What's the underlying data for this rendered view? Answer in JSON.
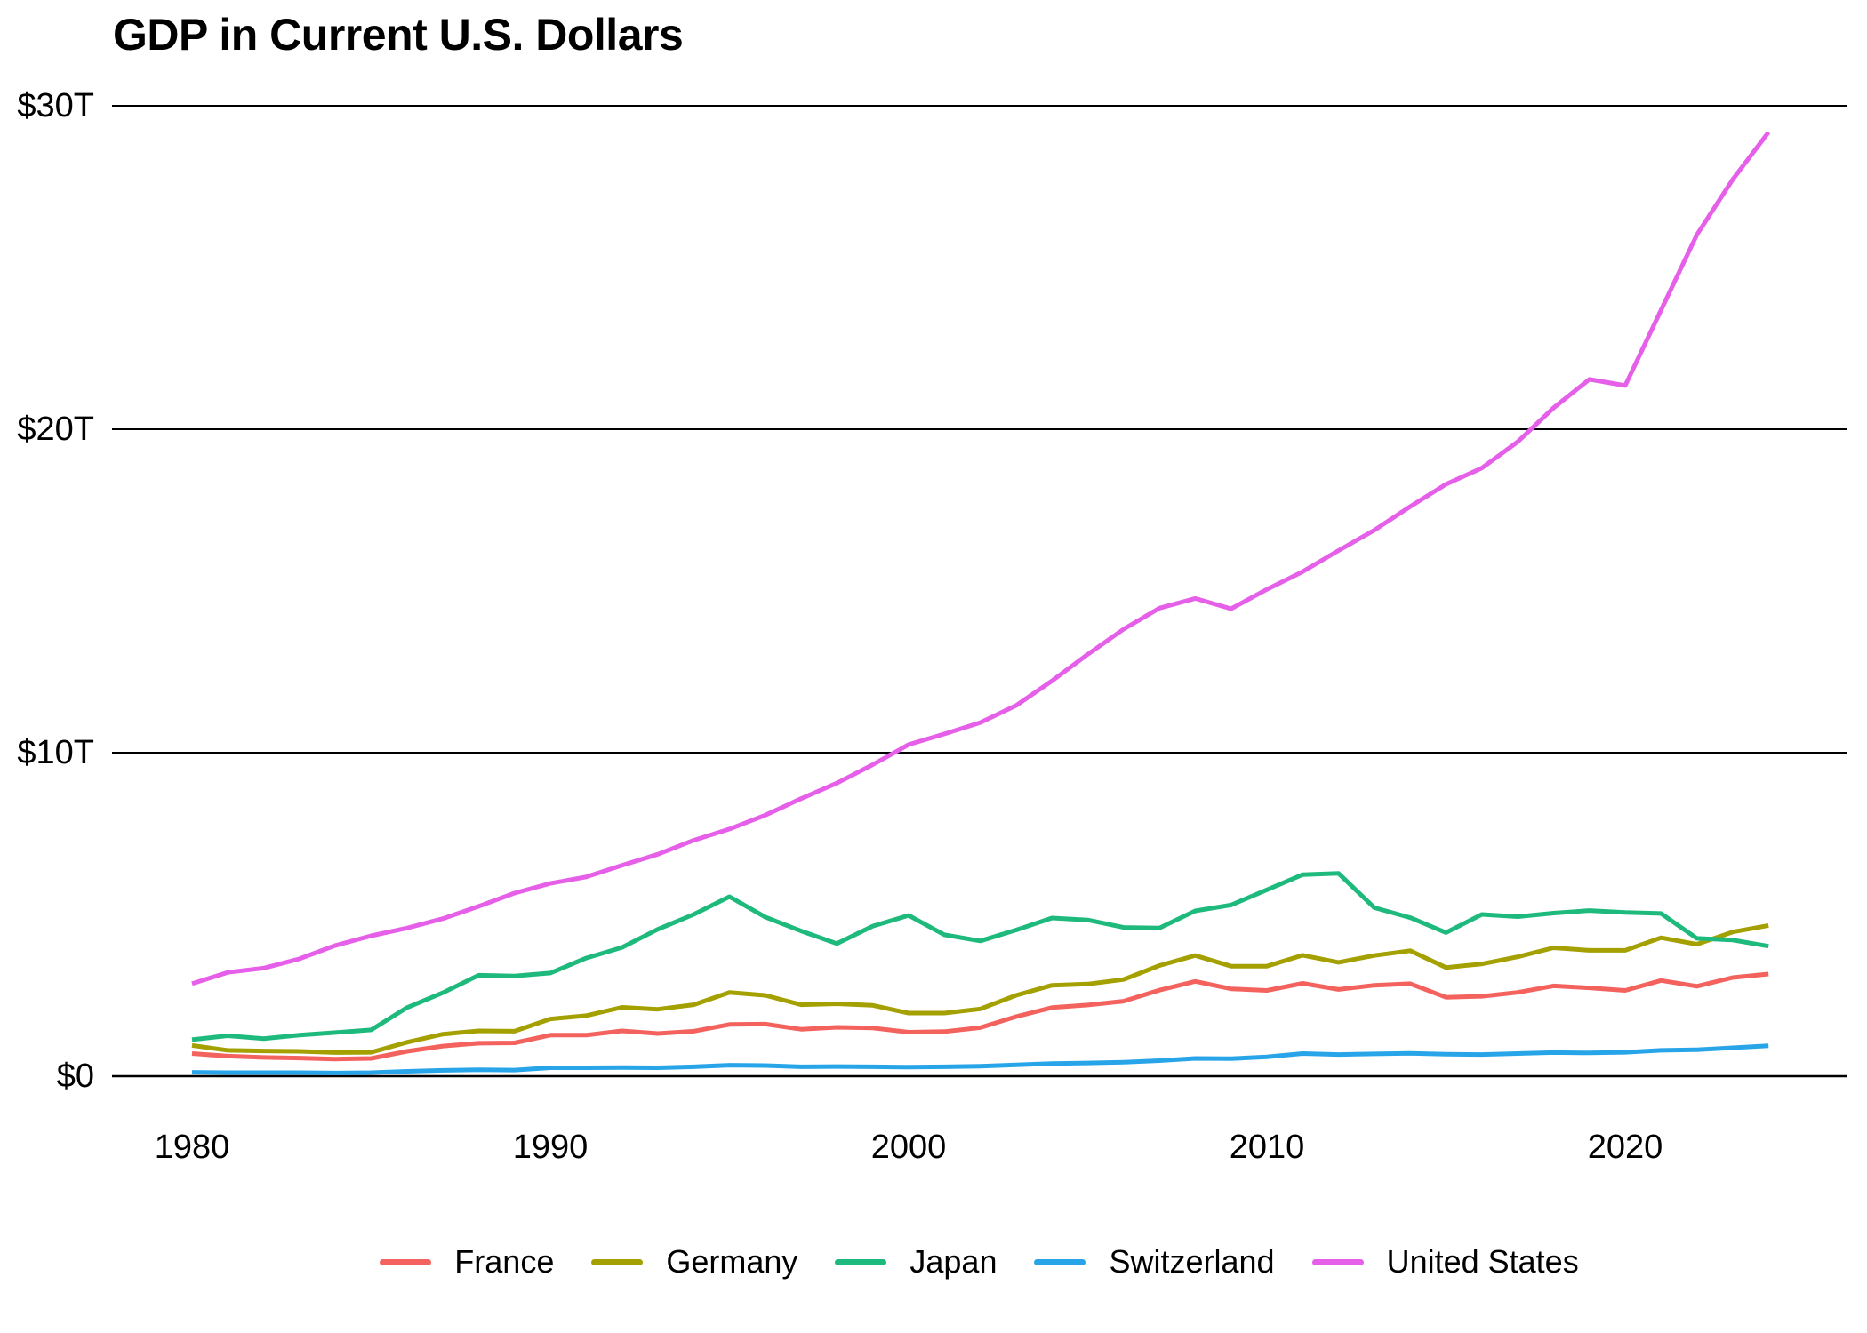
{
  "title": "GDP in Current U.S. Dollars",
  "chart_data": {
    "type": "line",
    "title": "GDP in Current U.S. Dollars",
    "unit": "trillions of current U.S. dollars",
    "grid": "horizontal",
    "legend_position": "bottom",
    "xlim": [
      1980,
      2024
    ],
    "ylim": [
      0,
      30
    ],
    "x_ticks": [
      {
        "value": 1980,
        "label": "1980"
      },
      {
        "value": 1990,
        "label": "1990"
      },
      {
        "value": 2000,
        "label": "2000"
      },
      {
        "value": 2010,
        "label": "2010"
      },
      {
        "value": 2020,
        "label": "2020"
      }
    ],
    "y_ticks": [
      {
        "value": 0,
        "label": "$0"
      },
      {
        "value": 10,
        "label": "$10T"
      },
      {
        "value": 20,
        "label": "$20T"
      },
      {
        "value": 30,
        "label": "$30T"
      }
    ],
    "x": [
      1980,
      1981,
      1982,
      1983,
      1984,
      1985,
      1986,
      1987,
      1988,
      1989,
      1990,
      1991,
      1992,
      1993,
      1994,
      1995,
      1996,
      1997,
      1998,
      1999,
      2000,
      2001,
      2002,
      2003,
      2004,
      2005,
      2006,
      2007,
      2008,
      2009,
      2010,
      2011,
      2012,
      2013,
      2014,
      2015,
      2016,
      2017,
      2018,
      2019,
      2020,
      2021,
      2022,
      2023,
      2024
    ],
    "series": [
      {
        "name": "France",
        "color": "#f4625e",
        "values": [
          0.7,
          0.62,
          0.58,
          0.56,
          0.53,
          0.55,
          0.77,
          0.93,
          1.02,
          1.03,
          1.27,
          1.27,
          1.4,
          1.32,
          1.39,
          1.6,
          1.61,
          1.45,
          1.51,
          1.49,
          1.36,
          1.38,
          1.5,
          1.84,
          2.12,
          2.2,
          2.32,
          2.66,
          2.93,
          2.7,
          2.65,
          2.87,
          2.68,
          2.81,
          2.86,
          2.44,
          2.47,
          2.59,
          2.79,
          2.73,
          2.65,
          2.96,
          2.78,
          3.05,
          3.16
        ]
      },
      {
        "name": "Germany",
        "color": "#a3a000",
        "values": [
          0.95,
          0.8,
          0.78,
          0.77,
          0.73,
          0.74,
          1.05,
          1.3,
          1.4,
          1.39,
          1.77,
          1.87,
          2.13,
          2.07,
          2.21,
          2.59,
          2.5,
          2.21,
          2.24,
          2.19,
          1.95,
          1.95,
          2.08,
          2.5,
          2.81,
          2.85,
          2.99,
          3.42,
          3.73,
          3.4,
          3.4,
          3.74,
          3.52,
          3.73,
          3.88,
          3.36,
          3.47,
          3.69,
          3.97,
          3.89,
          3.89,
          4.28,
          4.08,
          4.46,
          4.66
        ]
      },
      {
        "name": "Japan",
        "color": "#1eb97c",
        "values": [
          1.13,
          1.25,
          1.16,
          1.27,
          1.35,
          1.43,
          2.12,
          2.58,
          3.12,
          3.1,
          3.19,
          3.65,
          3.98,
          4.54,
          5.0,
          5.55,
          4.92,
          4.49,
          4.1,
          4.64,
          4.97,
          4.37,
          4.18,
          4.52,
          4.89,
          4.83,
          4.6,
          4.58,
          5.11,
          5.29,
          5.76,
          6.23,
          6.27,
          5.21,
          4.9,
          4.44,
          5.0,
          4.93,
          5.04,
          5.12,
          5.06,
          5.03,
          4.26,
          4.21,
          4.02
        ]
      },
      {
        "name": "Switzerland",
        "color": "#28a5e8",
        "values": [
          0.12,
          0.11,
          0.11,
          0.11,
          0.1,
          0.11,
          0.15,
          0.18,
          0.2,
          0.19,
          0.26,
          0.26,
          0.27,
          0.26,
          0.29,
          0.34,
          0.33,
          0.29,
          0.3,
          0.29,
          0.28,
          0.29,
          0.31,
          0.35,
          0.39,
          0.41,
          0.43,
          0.48,
          0.55,
          0.54,
          0.6,
          0.7,
          0.67,
          0.69,
          0.71,
          0.68,
          0.67,
          0.7,
          0.73,
          0.72,
          0.74,
          0.8,
          0.82,
          0.88,
          0.94
        ]
      },
      {
        "name": "United States",
        "color": "#e55fe9",
        "values": [
          2.86,
          3.21,
          3.34,
          3.63,
          4.04,
          4.34,
          4.58,
          4.87,
          5.25,
          5.66,
          5.96,
          6.16,
          6.52,
          6.86,
          7.29,
          7.64,
          8.07,
          8.58,
          9.06,
          9.63,
          10.25,
          10.58,
          10.93,
          11.46,
          12.22,
          13.04,
          13.82,
          14.47,
          14.77,
          14.45,
          15.05,
          15.6,
          16.25,
          16.88,
          17.61,
          18.3,
          18.8,
          19.61,
          20.66,
          21.54,
          21.35,
          23.68,
          26.01,
          27.72,
          29.18
        ]
      }
    ]
  }
}
